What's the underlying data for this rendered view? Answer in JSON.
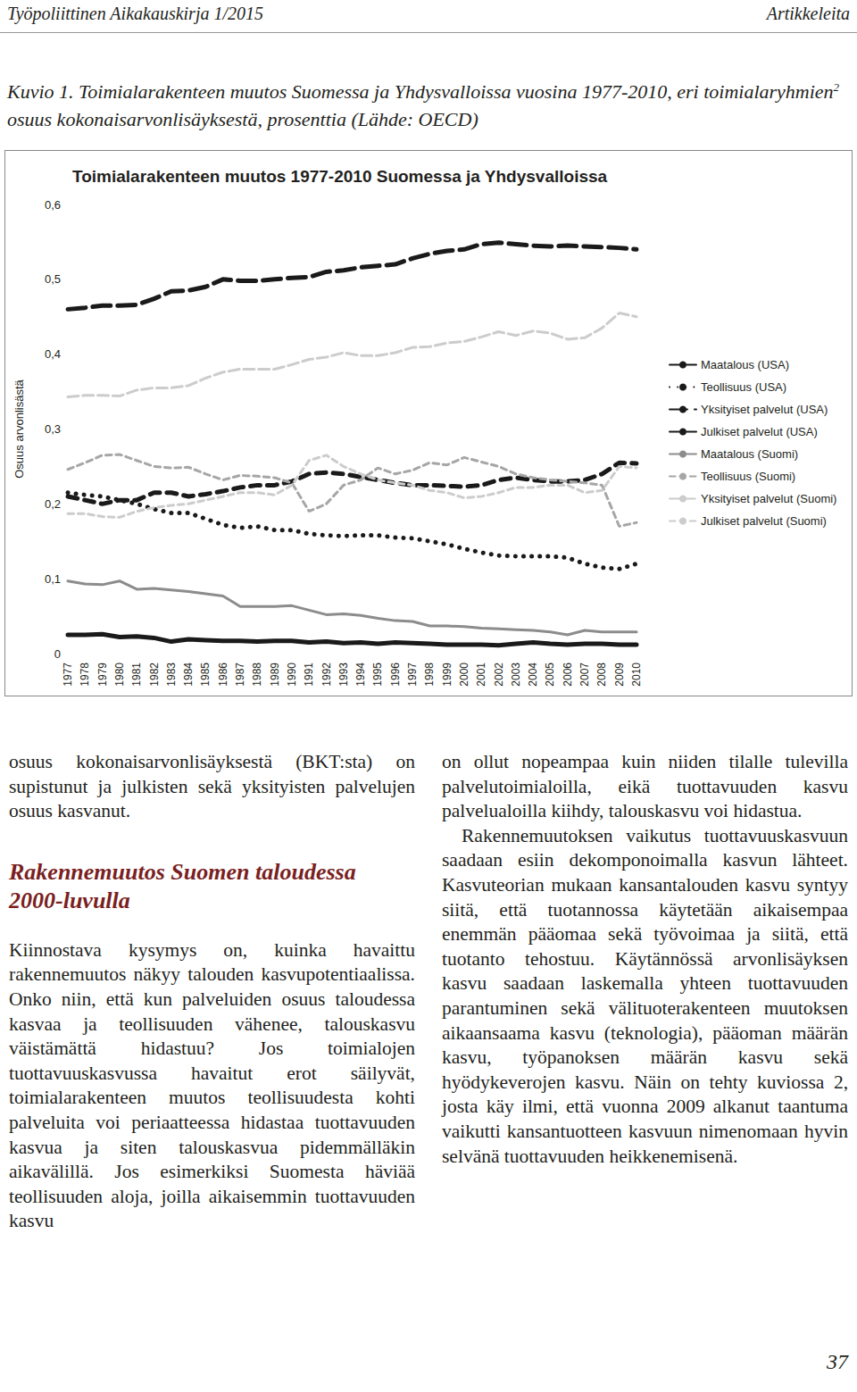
{
  "header": {
    "left": "Työpoliittinen Aikakauskirja 1/2015",
    "right": "Artikkeleita"
  },
  "caption": {
    "before": "Kuvio 1. Toimialarakenteen muutos Suomessa ja Yhdysvalloissa vuosina 1977-2010, eri toimialaryhmien",
    "sup": "2",
    "after": " osuus kokonaisarvonlisäyksestä, prosenttia (Lähde: OECD)"
  },
  "chart_data": {
    "type": "line",
    "title": "Toimialarakenteen muutos 1977-2010 Suomessa ja Yhdysvalloissa",
    "y_label": "Osuus arvonlisästä",
    "categories": [
      "1977",
      "1978",
      "1979",
      "1980",
      "1981",
      "1982",
      "1983",
      "1984",
      "1985",
      "1986",
      "1987",
      "1988",
      "1989",
      "1990",
      "1991",
      "1992",
      "1993",
      "1994",
      "1995",
      "1996",
      "1997",
      "1998",
      "1999",
      "2000",
      "2001",
      "2002",
      "2003",
      "2004",
      "2005",
      "2006",
      "2007",
      "2008",
      "2009",
      "2010"
    ],
    "ylim": [
      0,
      0.6
    ],
    "yticks": [
      0,
      {
        "value": 0.1,
        "label": "0,1"
      },
      {
        "value": 0.2,
        "label": "0,2"
      },
      {
        "value": 0.3,
        "label": "0,3"
      },
      {
        "value": 0.4,
        "label": "0,4"
      },
      {
        "value": 0.5,
        "label": "0,5"
      },
      {
        "value": 0.6,
        "label": "0,6"
      }
    ],
    "grid": false,
    "legend": "right",
    "series": [
      {
        "name": "Maatalous (USA)",
        "color": "#1a1a1a",
        "line_style": "solid",
        "values": [
          0.025,
          0.025,
          0.026,
          0.022,
          0.023,
          0.021,
          0.016,
          0.019,
          0.018,
          0.017,
          0.017,
          0.016,
          0.017,
          0.017,
          0.015,
          0.016,
          0.014,
          0.015,
          0.013,
          0.015,
          0.014,
          0.013,
          0.012,
          0.012,
          0.012,
          0.011,
          0.013,
          0.015,
          0.013,
          0.012,
          0.013,
          0.013,
          0.012,
          0.012
        ]
      },
      {
        "name": "Teollisuus (USA)",
        "color": "#1a1a1a",
        "line_style": "dotted",
        "values": [
          0.215,
          0.212,
          0.21,
          0.205,
          0.2,
          0.193,
          0.188,
          0.188,
          0.18,
          0.172,
          0.168,
          0.17,
          0.165,
          0.165,
          0.16,
          0.158,
          0.157,
          0.158,
          0.158,
          0.155,
          0.154,
          0.15,
          0.146,
          0.14,
          0.135,
          0.131,
          0.13,
          0.13,
          0.13,
          0.128,
          0.12,
          0.115,
          0.113,
          0.12
        ]
      },
      {
        "name": "Yksityiset palvelut (USA)",
        "color": "#1a1a1a",
        "line_style": "longdash",
        "values": [
          0.46,
          0.462,
          0.465,
          0.465,
          0.466,
          0.474,
          0.484,
          0.485,
          0.49,
          0.5,
          0.498,
          0.498,
          0.5,
          0.502,
          0.503,
          0.51,
          0.512,
          0.516,
          0.518,
          0.52,
          0.528,
          0.534,
          0.538,
          0.54,
          0.547,
          0.549,
          0.547,
          0.545,
          0.544,
          0.545,
          0.544,
          0.543,
          0.542,
          0.54
        ]
      },
      {
        "name": "Julkiset palvelut (USA)",
        "color": "#1a1a1a",
        "line_style": "dashed",
        "values": [
          0.21,
          0.205,
          0.2,
          0.205,
          0.205,
          0.215,
          0.215,
          0.21,
          0.213,
          0.217,
          0.222,
          0.225,
          0.225,
          0.23,
          0.24,
          0.242,
          0.24,
          0.236,
          0.232,
          0.228,
          0.225,
          0.225,
          0.224,
          0.223,
          0.225,
          0.232,
          0.235,
          0.232,
          0.23,
          0.23,
          0.232,
          0.24,
          0.255,
          0.254
        ]
      },
      {
        "name": "Maatalous (Suomi)",
        "color": "#8c8c8c",
        "line_style": "solid",
        "values": [
          0.097,
          0.093,
          0.092,
          0.097,
          0.086,
          0.087,
          0.085,
          0.083,
          0.08,
          0.077,
          0.063,
          0.063,
          0.063,
          0.064,
          0.058,
          0.052,
          0.053,
          0.051,
          0.047,
          0.044,
          0.043,
          0.037,
          0.037,
          0.036,
          0.034,
          0.033,
          0.032,
          0.031,
          0.029,
          0.025,
          0.031,
          0.029,
          0.029,
          0.029
        ]
      },
      {
        "name": "Teollisuus (Suomi)",
        "color": "#a6a6a6",
        "line_style": "dashed",
        "values": [
          0.246,
          0.255,
          0.265,
          0.266,
          0.258,
          0.25,
          0.248,
          0.249,
          0.24,
          0.232,
          0.238,
          0.237,
          0.235,
          0.228,
          0.19,
          0.2,
          0.225,
          0.232,
          0.248,
          0.24,
          0.245,
          0.255,
          0.252,
          0.262,
          0.256,
          0.25,
          0.24,
          0.235,
          0.232,
          0.23,
          0.228,
          0.225,
          0.17,
          0.175
        ]
      },
      {
        "name": "Yksityiset palvelut (Suomi)",
        "color": "#cccccc",
        "line_style": "longdash",
        "values": [
          0.343,
          0.345,
          0.345,
          0.344,
          0.352,
          0.355,
          0.355,
          0.358,
          0.368,
          0.376,
          0.38,
          0.38,
          0.38,
          0.386,
          0.393,
          0.396,
          0.402,
          0.398,
          0.398,
          0.402,
          0.409,
          0.41,
          0.415,
          0.417,
          0.423,
          0.43,
          0.425,
          0.431,
          0.428,
          0.42,
          0.422,
          0.435,
          0.455,
          0.45
        ]
      },
      {
        "name": "Julkiset palvelut (Suomi)",
        "color": "#cccccc",
        "line_style": "dashed",
        "values": [
          0.187,
          0.187,
          0.183,
          0.182,
          0.19,
          0.195,
          0.198,
          0.2,
          0.205,
          0.21,
          0.215,
          0.215,
          0.212,
          0.225,
          0.258,
          0.265,
          0.25,
          0.24,
          0.232,
          0.228,
          0.225,
          0.218,
          0.215,
          0.208,
          0.21,
          0.215,
          0.222,
          0.222,
          0.225,
          0.225,
          0.215,
          0.218,
          0.25,
          0.248
        ]
      }
    ]
  },
  "body": {
    "left": [
      {
        "kind": "p",
        "text": "osuus kokonaisarvonlisäyksestä (BKT:sta) on supistunut ja julkisten sekä yksityisten palvelujen osuus kasvanut."
      },
      {
        "kind": "heading",
        "text": "Rakennemuutos Suomen taloudessa 2000-luvulla"
      },
      {
        "kind": "p",
        "text": "Kiinnostava kysymys on, kuinka havaittu rakennemuutos näkyy talouden kasvupotentiaalissa. Onko niin, että kun palveluiden osuus taloudessa kasvaa ja teollisuuden vähenee, talouskasvu väistämättä hidastuu? Jos toimialojen tuottavuuskasvussa havaitut erot säilyvät, toimialarakenteen muutos teollisuudesta kohti palveluita voi periaatteessa hidastaa tuottavuuden kasvua ja siten talouskasvua pidemmälläkin aikavälillä. Jos esimerkiksi Suomesta häviää teollisuuden aloja, joilla aikaisemmin tuottavuuden kasvu"
      }
    ],
    "right": [
      {
        "kind": "p",
        "text": "on ollut nopeampaa kuin niiden tilalle tulevilla palvelutoimialoilla, eikä tuottavuuden kasvu palvelualoilla kiihdy, talouskasvu voi hidastua."
      },
      {
        "kind": "indented",
        "text": "Rakennemuutoksen vaikutus tuottavuuskasvuun saadaan esiin dekomponoimalla kasvun lähteet. Kasvuteorian mukaan kansantalouden kasvu syntyy siitä, että tuotannossa käytetään aikaisempaa enemmän pääomaa sekä työvoimaa ja siitä, että tuotanto tehostuu. Käytännössä arvonlisäyksen kasvu saadaan laskemalla yhteen tuottavuuden parantuminen sekä välituoterakenteen muutoksen aikaansaama kasvu (teknologia), pääoman määrän kasvu, työpanoksen määrän kasvu sekä hyödykeverojen kasvu. Näin on tehty kuviossa 2, josta käy ilmi, että vuonna 2009 alkanut taantuma vaikutti kansantuotteen kasvuun nimenomaan hyvin selvänä tuottavuuden heikkenemisenä."
      }
    ]
  },
  "page_number": "37"
}
